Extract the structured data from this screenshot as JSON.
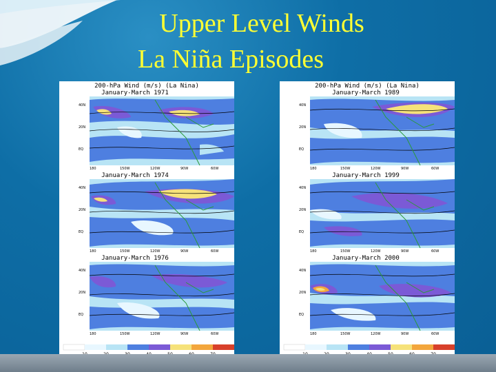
{
  "slide": {
    "title_line1": "Upper Level Winds",
    "title_line2": "La Niña Episodes"
  },
  "colors": {
    "title": "#ffff33",
    "band_10": "#e8f7ff",
    "band_20": "#b8e4f5",
    "band_30": "#4e7fe0",
    "band_40": "#7b5ad6",
    "band_50": "#f6e27a",
    "band_60": "#f3a63c",
    "band_70": "#d8402a"
  },
  "left_panel": {
    "header": "200-hPa Wind (m/s) (La Nina)",
    "maps": [
      {
        "label": "January-March 1971"
      },
      {
        "label": "January-March 1974"
      },
      {
        "label": "January-March 1976"
      }
    ]
  },
  "right_panel": {
    "header": "200-hPa Wind (m/s) (La Nina)",
    "maps": [
      {
        "label": "January-March 1989"
      },
      {
        "label": "January-March 1999"
      },
      {
        "label": "January-March 2000"
      }
    ]
  },
  "colorbar": {
    "ticks": [
      "10",
      "20",
      "30",
      "40",
      "50",
      "60",
      "70"
    ]
  },
  "axis": {
    "lat_ticks": [
      "40N",
      "20N",
      "EQ"
    ],
    "lon_ticks": [
      "180",
      "150W",
      "120W",
      "90W",
      "60W"
    ]
  }
}
